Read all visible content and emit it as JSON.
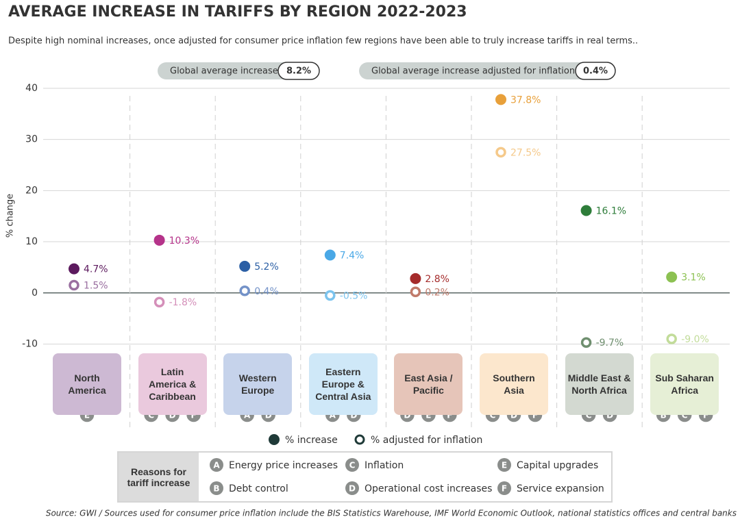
{
  "chart_data": {
    "type": "dot",
    "title": "AVERAGE INCREASE IN TARIFFS BY REGION 2022-2023",
    "subtitle": "Despite high nominal increases, once adjusted for consumer price inflation few regions have been able to truly increase tariffs in real terms..",
    "y_label": "% change",
    "source": "Source: GWI / Sources used for consumer price inflation include the BIS Statistics Warehouse, IMF World Economic Outlook, national statistics offices and central banks",
    "global_average": {
      "label": "Global average increase",
      "value_label": "8.2%"
    },
    "global_average_adjusted": {
      "label": "Global average increase adjusted for inflation",
      "value_label": "0.4%"
    },
    "categories": [
      "North America",
      "Latin America & Caribbean",
      "Western Europe",
      "Eastern Europe & Central Asia",
      "East Asia / Pacific",
      "Southern Asia",
      "Middle East & North Africa",
      "Sub Saharan Africa"
    ],
    "box_colors": [
      "#cdb9d3",
      "#eac9dd",
      "#c6d3eb",
      "#cfe8f8",
      "#e6c5b9",
      "#fce7cd",
      "#d3d9d1",
      "#e6efd6"
    ],
    "reasons": [
      [
        "E"
      ],
      [
        "C",
        "D",
        "F"
      ],
      [
        "A",
        "D"
      ],
      [
        "A",
        "D"
      ],
      [
        "D",
        "E",
        "F"
      ],
      [
        "C",
        "D",
        "F"
      ],
      [
        "C",
        "D"
      ],
      [
        "B",
        "C",
        "F"
      ]
    ],
    "series": [
      {
        "name": "% increase",
        "color": "#1f3a38",
        "hollow": false,
        "colors": [
          "#5c1a5e",
          "#b5338a",
          "#2b5fa5",
          "#4aa8e6",
          "#a52b2b",
          "#e8a03a",
          "#2e7d3a",
          "#8cc152"
        ],
        "values": [
          4.7,
          10.3,
          5.2,
          7.4,
          2.8,
          37.8,
          16.1,
          3.1
        ],
        "value_labels": [
          "4.7%",
          "10.3%",
          "5.2%",
          "7.4%",
          "2.8%",
          "37.8%",
          "16.1%",
          "3.1%"
        ]
      },
      {
        "name": "% adjusted for inflation",
        "color": "#1f3a38",
        "hollow": true,
        "colors": [
          "#9a6fa0",
          "#d48fb9",
          "#7392c8",
          "#7cc4ee",
          "#c07a6a",
          "#f5c98a",
          "#6f8f6f",
          "#c2dc9a"
        ],
        "values": [
          1.5,
          -1.8,
          0.4,
          -0.5,
          0.2,
          27.5,
          -9.7,
          -9.0
        ],
        "value_labels": [
          "1.5%",
          "-1.8%",
          "0.4%",
          "-0.5%",
          "0.2%",
          "27.5%",
          "-9.7%",
          "-9.0%"
        ]
      }
    ],
    "ylim": [
      -26,
      42
    ],
    "yticks": [
      -10,
      0,
      10,
      20,
      30,
      40
    ],
    "grid": true,
    "reasons_legend": {
      "title": "Reasons for tariff increase",
      "items": [
        {
          "letter": "A",
          "text": "Energy price increases"
        },
        {
          "letter": "B",
          "text": "Debt control"
        },
        {
          "letter": "C",
          "text": "Inflation"
        },
        {
          "letter": "D",
          "text": "Operational cost increases"
        },
        {
          "letter": "E",
          "text": "Capital upgrades"
        },
        {
          "letter": "F",
          "text": "Service expansion"
        }
      ]
    }
  }
}
